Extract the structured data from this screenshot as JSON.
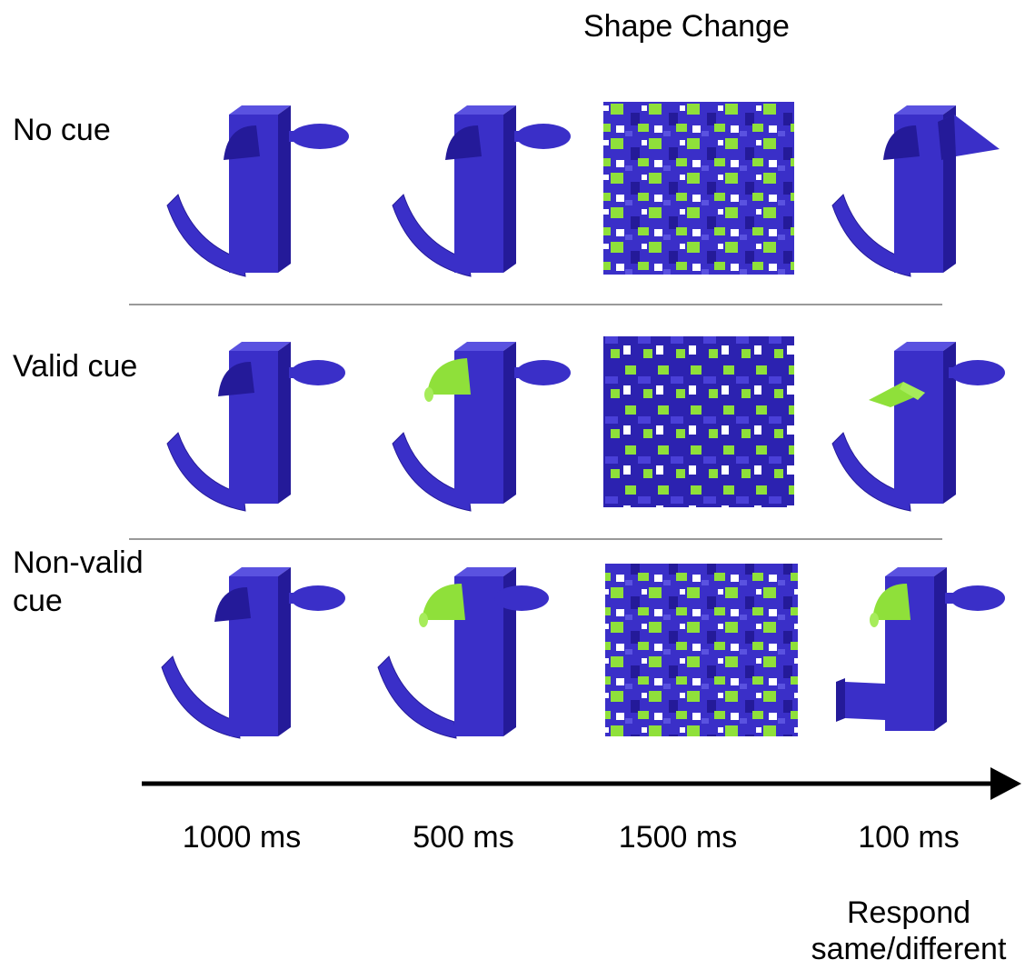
{
  "header": {
    "column_title": "Shape Change"
  },
  "rows": [
    {
      "label": "No cue"
    },
    {
      "label": "Valid cue"
    },
    {
      "label_line1": "Non-valid",
      "label_line2": "cue"
    }
  ],
  "timeline": {
    "durations": [
      "1000 ms",
      "500 ms",
      "1500 ms",
      "100 ms"
    ]
  },
  "response": {
    "line1": "Respond",
    "line2": "same/different"
  },
  "colors": {
    "object": "#3a2fc8",
    "object_dark": "#241a99",
    "object_light": "#5a52e0",
    "cue_green": "#8fe03a",
    "mask_white": "#ffffff",
    "divider": "#999999",
    "arrow": "#000000"
  }
}
